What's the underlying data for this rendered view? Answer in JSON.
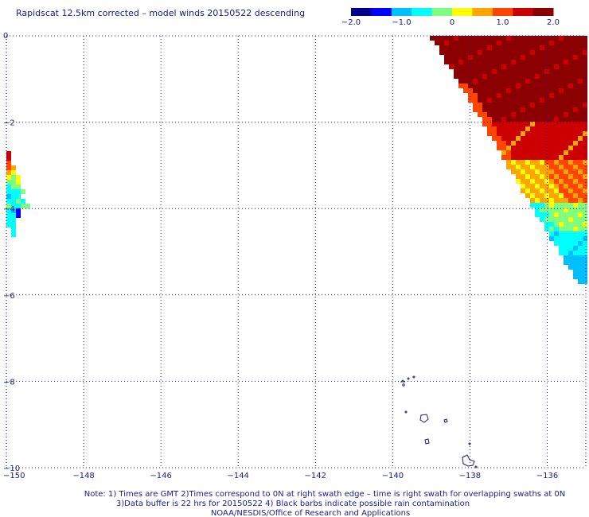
{
  "title": "Rapidscat 12.5km corrected – model winds 20150522 descending",
  "colorbar": {
    "tick_labels": [
      "−2.0",
      "−1.0",
      "0",
      "1.0",
      "2.0"
    ],
    "values": [
      -2.0,
      -1.0,
      0,
      1.0,
      2.0
    ],
    "colors": [
      "#00008b",
      "#0000ff",
      "#00bfff",
      "#00ffff",
      "#7fff7f",
      "#ffff00",
      "#ffa500",
      "#ff4500",
      "#cc0000",
      "#8b0000"
    ]
  },
  "map": {
    "lon_range": [
      -150,
      -135
    ],
    "lat_range": [
      -10,
      0
    ],
    "lon_ticks": [
      -148,
      -146,
      -144,
      -142,
      -140,
      -138,
      -136
    ],
    "lon_tick_labels": [
      "−148",
      "−146",
      "−144",
      "−142",
      "−140",
      "−138",
      "−136"
    ],
    "lon_corner_label": "−150",
    "lat_ticks": [
      0,
      -2,
      -4,
      -6,
      -8,
      -10
    ],
    "lat_tick_labels": [
      "0",
      "−2",
      "−4",
      "−6",
      "−8",
      "−10"
    ],
    "grid": true,
    "grid_color": "#1a1a8c"
  },
  "notes": {
    "line1": "Note: 1) Times are GMT 2)Times correspond to 0N at right swath edge – time is right swath for overlapping swaths at 0N",
    "line2": "3)Data buffer is 22 hrs for 20150522 4) Black barbs indicate possible rain contamination",
    "line3": "NOAA/NESDIS/Office of Research and Applications"
  }
}
